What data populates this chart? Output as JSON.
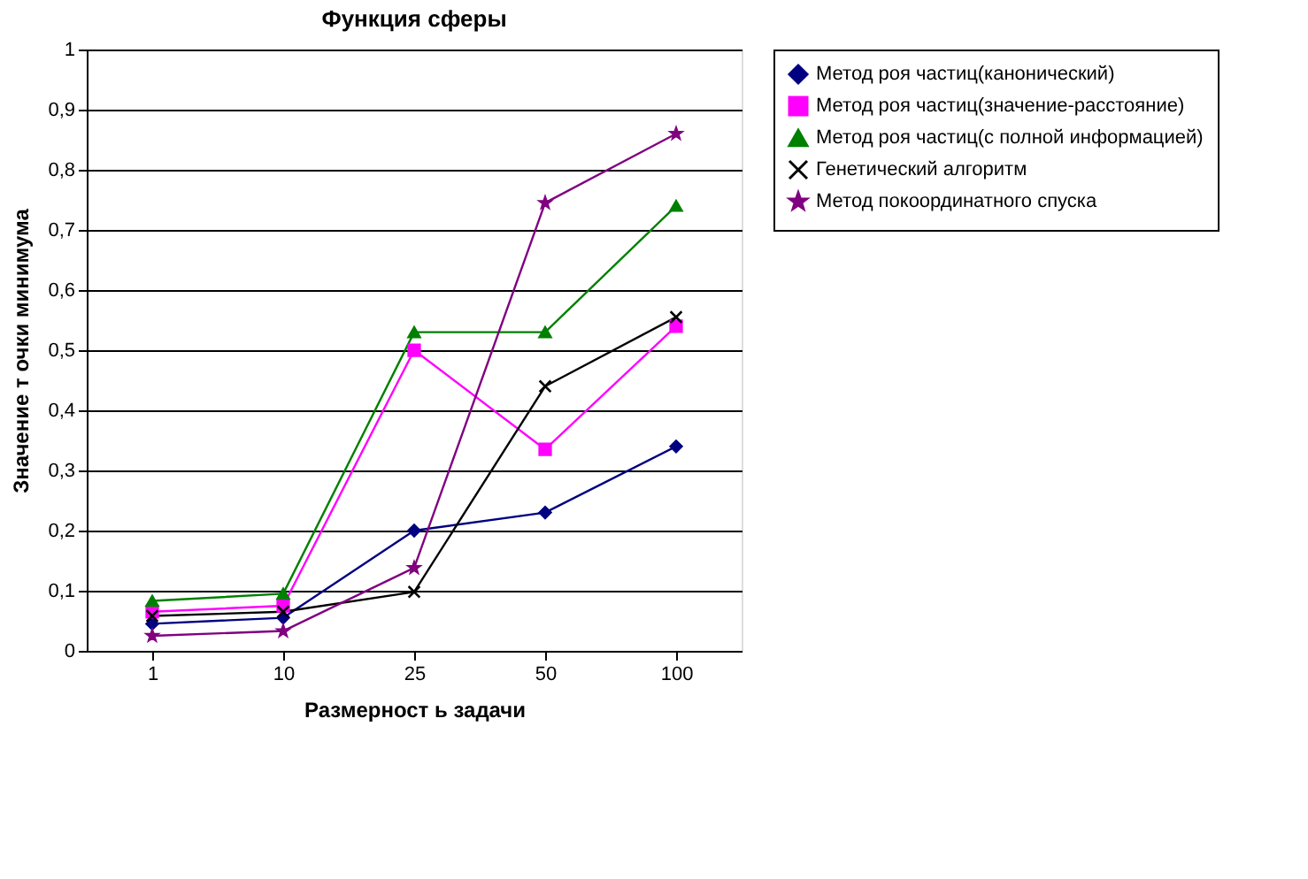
{
  "chart_data": {
    "type": "line",
    "title": "Функция сферы",
    "xlabel": "Размерност ь задачи",
    "ylabel": "Значение т очки минимума",
    "categories": [
      "1",
      "10",
      "25",
      "50",
      "100"
    ],
    "ylim": [
      0,
      1
    ],
    "yticks": [
      0,
      {
        "value": 0.1,
        "label": "0,1"
      },
      {
        "value": 0.2,
        "label": "0,2"
      },
      {
        "value": 0.3,
        "label": "0,3"
      },
      {
        "value": 0.4,
        "label": "0,4"
      },
      {
        "value": 0.5,
        "label": "0,5"
      },
      {
        "value": 0.6,
        "label": "0,6"
      },
      {
        "value": 0.7,
        "label": "0,7"
      },
      {
        "value": 0.8,
        "label": "0,8"
      },
      {
        "value": 0.9,
        "label": "0,9"
      },
      1
    ],
    "grid": "y",
    "legend": "right",
    "line_style": "solid",
    "series": [
      {
        "name": "Метод роя частиц(канонический)",
        "color": "#000080",
        "marker": "diamond",
        "values": [
          0.045,
          0.055,
          0.2,
          0.23,
          0.34
        ]
      },
      {
        "name": "Метод роя частиц(значение-расстояние)",
        "color": "#ff00ff",
        "marker": "square",
        "values": [
          0.065,
          0.075,
          0.5,
          0.335,
          0.54
        ]
      },
      {
        "name": "Метод роя частиц(с полной информацией)",
        "color": "#008000",
        "marker": "triangle",
        "values": [
          0.083,
          0.095,
          0.53,
          0.53,
          0.74
        ]
      },
      {
        "name": "Генетический алгоритм",
        "color": "#000000",
        "marker": "cross",
        "values": [
          0.058,
          0.065,
          0.098,
          0.44,
          0.555
        ]
      },
      {
        "name": "Метод покоординатного спуска",
        "color": "#800080",
        "marker": "star",
        "values": [
          0.025,
          0.033,
          0.138,
          0.745,
          0.86
        ]
      }
    ]
  }
}
